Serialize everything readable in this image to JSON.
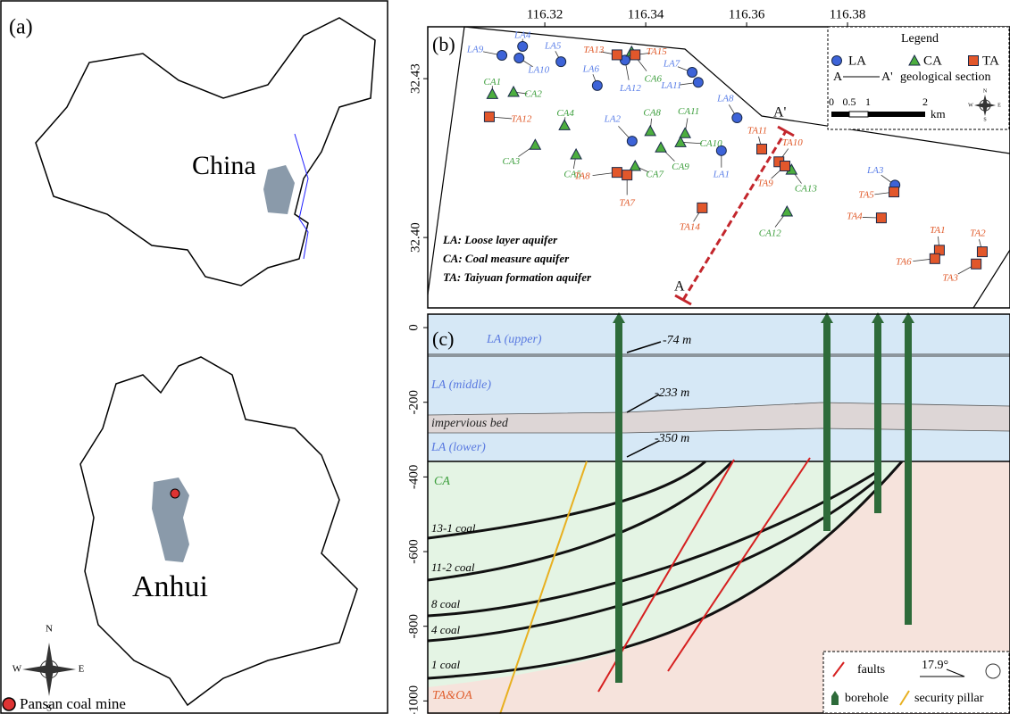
{
  "panel_a": {
    "label": "(a)",
    "country": "China",
    "province": "Anhui",
    "legend": "Pansan coal mine",
    "compass": [
      "N",
      "S",
      "W",
      "E"
    ]
  },
  "panel_b": {
    "label": "(b)",
    "xlim": [
      116.2968,
      116.4122
    ],
    "ylim": [
      32.3867,
      32.4398
    ],
    "xticks": [
      116.32,
      116.34,
      116.36,
      116.38
    ],
    "yticks": [
      {
        "value": 32.4,
        "label": "32.40"
      },
      32.43
    ],
    "legend": {
      "title": "Legend",
      "items": [
        {
          "name": "LA",
          "color": "#3d63d8"
        },
        {
          "name": "CA",
          "color": "#4cae3f"
        },
        {
          "name": "TA",
          "color": "#e2572b"
        }
      ],
      "section_label": "geological section",
      "scale": [
        "0",
        "0.5",
        "1",
        "2"
      ],
      "unit": "km",
      "compass": [
        "N",
        "S",
        "W",
        "E"
      ]
    },
    "section_ends": [
      "A",
      "A'"
    ],
    "notes": [
      "LA: Loose layer aquifer",
      "CA: Coal measure aquifer",
      "TA: Taiyuan formation aquifer"
    ],
    "wells": [
      {
        "label": "LA9",
        "type": 0,
        "lon": 116.3115,
        "lat": 32.4344
      },
      {
        "label": "LA4",
        "type": 0,
        "lon": 116.3156,
        "lat": 32.4361
      },
      {
        "label": "LA10",
        "type": 0,
        "lon": 116.3149,
        "lat": 32.4339
      },
      {
        "label": "LA5",
        "type": 0,
        "lon": 116.3232,
        "lat": 32.4332
      },
      {
        "label": "LA6",
        "type": 0,
        "lon": 116.3304,
        "lat": 32.4287
      },
      {
        "label": "LA12",
        "type": 0,
        "lon": 116.3359,
        "lat": 32.4335
      },
      {
        "label": "LA7",
        "type": 0,
        "lon": 116.3492,
        "lat": 32.4312
      },
      {
        "label": "LA11",
        "type": 0,
        "lon": 116.3504,
        "lat": 32.4293
      },
      {
        "label": "LA8",
        "type": 0,
        "lon": 116.3581,
        "lat": 32.4226
      },
      {
        "label": "LA2",
        "type": 0,
        "lon": 116.3373,
        "lat": 32.4182
      },
      {
        "label": "LA1",
        "type": 0,
        "lon": 116.355,
        "lat": 32.4164
      },
      {
        "label": "LA3",
        "type": 0,
        "lon": 116.3894,
        "lat": 32.4099
      },
      {
        "label": "CA1",
        "type": 1,
        "lon": 116.3096,
        "lat": 32.4271
      },
      {
        "label": "CA2",
        "type": 1,
        "lon": 116.3138,
        "lat": 32.4275
      },
      {
        "label": "CA4",
        "type": 1,
        "lon": 116.3239,
        "lat": 32.4212
      },
      {
        "label": "CA3",
        "type": 1,
        "lon": 116.3181,
        "lat": 32.4175
      },
      {
        "label": "CA5",
        "type": 1,
        "lon": 116.3262,
        "lat": 32.4157
      },
      {
        "label": "CA8",
        "type": 1,
        "lon": 116.3409,
        "lat": 32.4201
      },
      {
        "label": "CA6",
        "type": 1,
        "lon": 116.3372,
        "lat": 32.4351
      },
      {
        "label": "CA11",
        "type": 1,
        "lon": 116.3478,
        "lat": 32.4197
      },
      {
        "label": "CA10",
        "type": 1,
        "lon": 116.3469,
        "lat": 32.418
      },
      {
        "label": "CA9",
        "type": 1,
        "lon": 116.343,
        "lat": 32.417
      },
      {
        "label": "CA7",
        "type": 1,
        "lon": 116.3379,
        "lat": 32.4135
      },
      {
        "label": "CA13",
        "type": 1,
        "lon": 116.3689,
        "lat": 32.4128
      },
      {
        "label": "CA12",
        "type": 1,
        "lon": 116.368,
        "lat": 32.4049
      },
      {
        "label": "TA13",
        "type": 2,
        "lon": 116.3343,
        "lat": 32.4345
      },
      {
        "label": "TA15",
        "type": 2,
        "lon": 116.3379,
        "lat": 32.4345
      },
      {
        "label": "TA12",
        "type": 2,
        "lon": 116.309,
        "lat": 32.4228
      },
      {
        "label": "TA8",
        "type": 2,
        "lon": 116.3343,
        "lat": 32.4123
      },
      {
        "label": "TA7",
        "type": 2,
        "lon": 116.3363,
        "lat": 32.4118
      },
      {
        "label": "TA11",
        "type": 2,
        "lon": 116.363,
        "lat": 32.4167
      },
      {
        "label": "TA10",
        "type": 2,
        "lon": 116.3664,
        "lat": 32.4143
      },
      {
        "label": "TA9",
        "type": 2,
        "lon": 116.3676,
        "lat": 32.4135
      },
      {
        "label": "TA14",
        "type": 2,
        "lon": 116.3512,
        "lat": 32.4056
      },
      {
        "label": "TA5",
        "type": 2,
        "lon": 116.3892,
        "lat": 32.4086
      },
      {
        "label": "TA4",
        "type": 2,
        "lon": 116.3867,
        "lat": 32.4037
      },
      {
        "label": "TA1",
        "type": 2,
        "lon": 116.3982,
        "lat": 32.3976
      },
      {
        "label": "TA2",
        "type": 2,
        "lon": 116.4067,
        "lat": 32.3973
      },
      {
        "label": "TA6",
        "type": 2,
        "lon": 116.3973,
        "lat": 32.396
      },
      {
        "label": "TA3",
        "type": 2,
        "lon": 116.4055,
        "lat": 32.395
      }
    ]
  },
  "panel_c": {
    "label": "(c)",
    "ylim": [
      -1035,
      36
    ],
    "yticks": [
      0,
      -200,
      -400,
      -600,
      -800,
      -1000
    ],
    "layers": [
      "LA (upper)",
      "LA (middle)",
      "impervious bed",
      "LA (lower)",
      "CA",
      "TA&OA"
    ],
    "depths": [
      "-74 m",
      "-233 m",
      "-350 m"
    ],
    "coals": [
      "13-1 coal",
      "11-2 coal",
      "8 coal",
      "4 coal",
      "1 coal"
    ],
    "legend": {
      "faults": "faults",
      "borehole": "borehole",
      "pillar": "security pillar",
      "angle": "17.9°"
    }
  }
}
